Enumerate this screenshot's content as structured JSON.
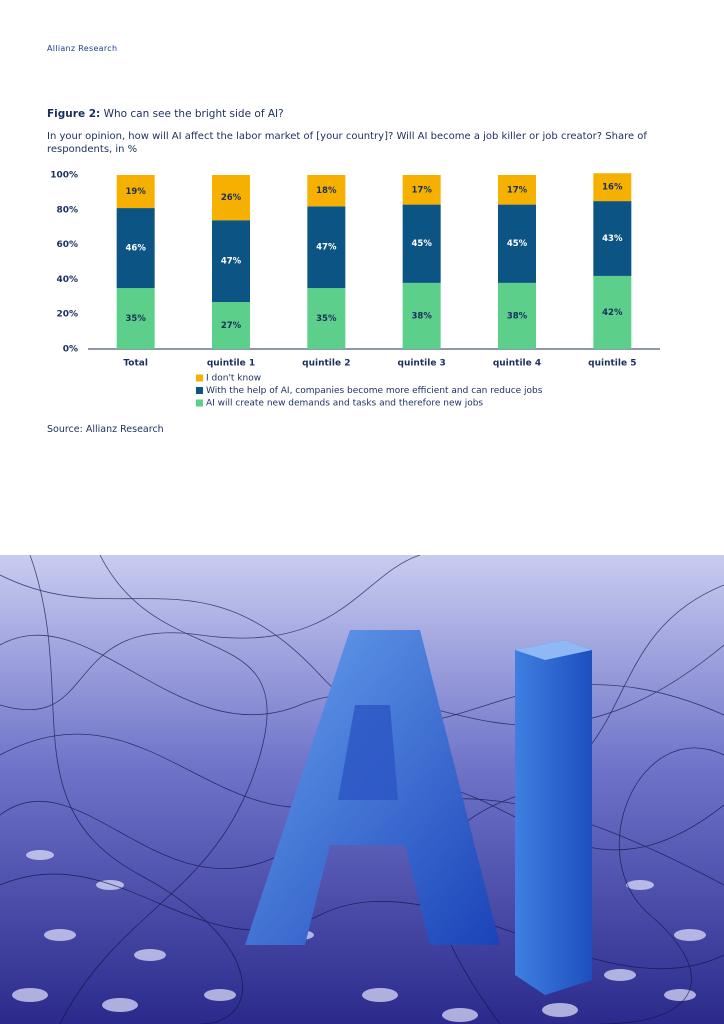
{
  "header": {
    "brand": "Allianz Research"
  },
  "figure": {
    "label": "Figure 2:",
    "title": "Who can see the bright side of AI?",
    "description": "In your opinion, how will AI affect the labor market of [your country]? Will AI become a job killer or job creator? Share of respondents, in %",
    "source": "Source: Allianz Research"
  },
  "chart_data": {
    "type": "stacked-bar",
    "categories": [
      "Total",
      "quintile 1",
      "quintile 2",
      "quintile 3",
      "quintile 4",
      "quintile 5"
    ],
    "series": [
      {
        "name": "AI will create new demands and tasks and therefore new jobs",
        "color": "#5ccf8a",
        "values": [
          35,
          27,
          35,
          38,
          38,
          42
        ],
        "value_labels": [
          "35%",
          "27%",
          "35%",
          "38%",
          "38%",
          "42%"
        ]
      },
      {
        "name": "With the help of AI, companies become more efficient and can reduce jobs",
        "color": "#0b5484",
        "values": [
          46,
          47,
          47,
          45,
          45,
          43
        ],
        "value_labels": [
          "46%",
          "47%",
          "47%",
          "45%",
          "45%",
          "43%"
        ]
      },
      {
        "name": "I don't know",
        "color": "#f6b100",
        "values": [
          19,
          26,
          18,
          17,
          17,
          16
        ],
        "value_labels": [
          "19%",
          "26%",
          "18%",
          "17%",
          "17%",
          "16%"
        ]
      }
    ],
    "ylim": [
      0,
      100
    ],
    "yticks": [
      {
        "value": 0,
        "label": "0%"
      },
      {
        "value": 20,
        "label": "20%"
      },
      {
        "value": 40,
        "label": "40%"
      },
      {
        "value": 60,
        "label": "60%"
      },
      {
        "value": 80,
        "label": "80%"
      },
      {
        "value": 100,
        "label": "100%"
      }
    ]
  }
}
